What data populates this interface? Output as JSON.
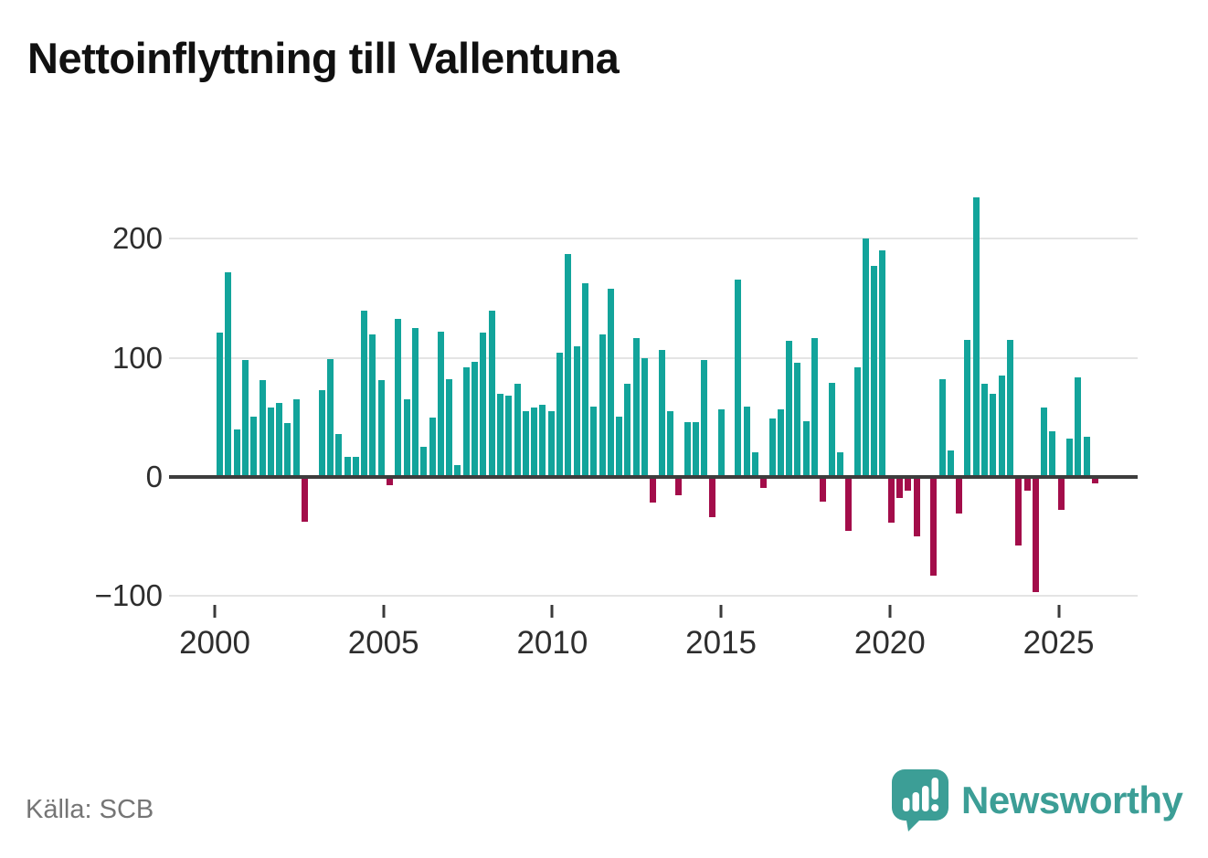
{
  "title": "Nettoinflyttning till Vallentuna",
  "source": "Källa: SCB",
  "logo": {
    "text": "Newsworthy",
    "color": "#3c9e96",
    "icon": "speech-bubble-bar-chart-icon"
  },
  "chart_data": {
    "type": "bar",
    "title": "Nettoinflyttning till Vallentuna",
    "frequency": "quarterly",
    "start_year": 2000,
    "quarters_per_year": 4,
    "values": [
      121,
      172,
      40,
      98,
      51,
      81,
      58,
      62,
      45,
      65,
      -36,
      0,
      73,
      99,
      36,
      17,
      17,
      140,
      120,
      81,
      -5,
      133,
      65,
      125,
      25,
      50,
      122,
      82,
      10,
      92,
      97,
      121,
      140,
      70,
      68,
      78,
      55,
      58,
      61,
      55,
      104,
      187,
      110,
      163,
      59,
      120,
      158,
      51,
      78,
      117,
      100,
      -20,
      107,
      55,
      -14,
      46,
      46,
      98,
      -32,
      57,
      0,
      166,
      59,
      21,
      -8,
      49,
      57,
      114,
      96,
      47,
      117,
      -19,
      79,
      21,
      -44,
      92,
      200,
      177,
      190,
      -37,
      -16,
      -10,
      -48,
      0,
      -81,
      82,
      22,
      -29,
      115,
      235,
      78,
      70,
      85,
      115,
      -56,
      -10,
      -95,
      58,
      38,
      -26,
      32,
      84,
      34,
      -4
    ],
    "x_ticks": [
      {
        "label": "2000",
        "year": 2000
      },
      {
        "label": "2005",
        "year": 2005
      },
      {
        "label": "2010",
        "year": 2010
      },
      {
        "label": "2015",
        "year": 2015
      },
      {
        "label": "2020",
        "year": 2020
      },
      {
        "label": "2025",
        "year": 2025
      }
    ],
    "y_ticks": [
      {
        "label": "200",
        "value": 200
      },
      {
        "label": "100",
        "value": 100
      },
      {
        "label": "0",
        "value": 0
      },
      {
        "label": "−100",
        "value": -100
      }
    ],
    "ylim": [
      -120,
      255
    ],
    "grid": "horizontal",
    "legend": "none",
    "positive_color": "#12a49b",
    "negative_color": "#a30d4a"
  }
}
